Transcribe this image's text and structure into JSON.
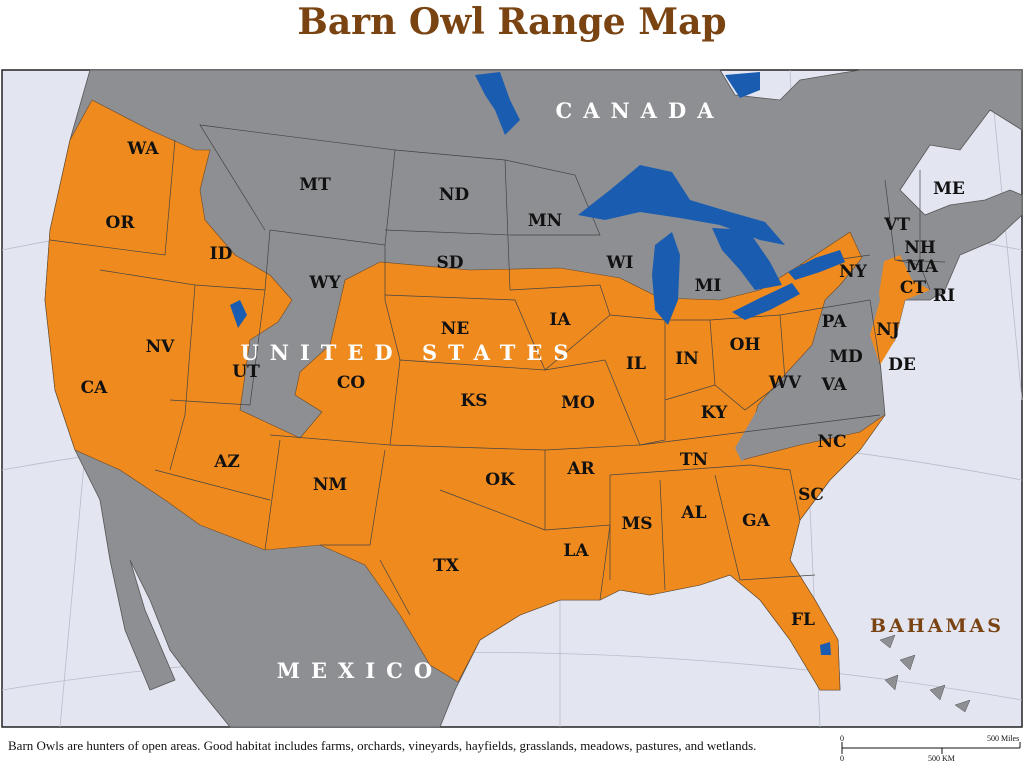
{
  "title": "Barn Owl Range Map",
  "colors": {
    "title": "#7a4312",
    "range": "#ee8a1e",
    "land": "#8e8f93",
    "water": "#e3e5f1",
    "lakes": "#1a5cb0"
  },
  "countries": {
    "canada": "CANADA",
    "us": "UNITED STATES",
    "mexico": "MEXICO",
    "bahamas": "BAHAMAS"
  },
  "states": [
    "WA",
    "OR",
    "CA",
    "NV",
    "ID",
    "MT",
    "WY",
    "UT",
    "AZ",
    "CO",
    "NM",
    "ND",
    "SD",
    "NE",
    "KS",
    "OK",
    "TX",
    "MN",
    "IA",
    "MO",
    "AR",
    "LA",
    "WI",
    "IL",
    "MI",
    "IN",
    "OH",
    "KY",
    "TN",
    "MS",
    "AL",
    "GA",
    "FL",
    "SC",
    "NC",
    "VA",
    "WV",
    "MD",
    "DE",
    "PA",
    "NJ",
    "NY",
    "CT",
    "RI",
    "MA",
    "NH",
    "VT",
    "ME"
  ],
  "caption": "Barn Owls are hunters of open areas. Good habitat includes farms, orchards, vineyards, hayfields, grasslands, meadows, pastures, and wetlands.",
  "scale": {
    "zero_miles": "0",
    "miles": "500 Miles",
    "zero_km": "0",
    "km": "500 KM"
  }
}
